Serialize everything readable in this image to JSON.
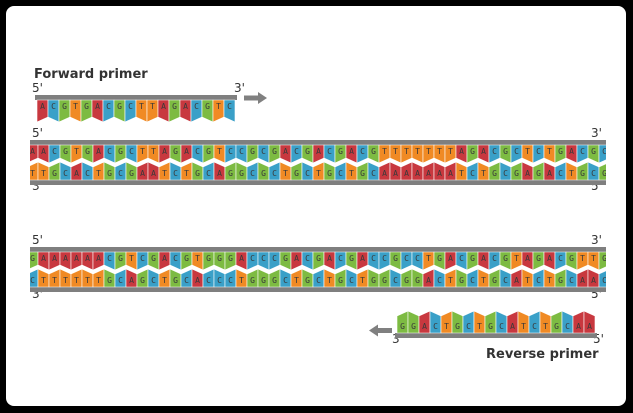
{
  "colors": {
    "A": "#c8383f",
    "C": "#3aa0c8",
    "G": "#7dbb42",
    "T": "#f08a24",
    "backbone": "#7f7f7f",
    "arrow": "#808080"
  },
  "labels": {
    "forward_primer": "Forward primer",
    "reverse_primer": "Reverse primer",
    "five_prime": "5'",
    "three_prime": "3'"
  },
  "forward_primer_seq": "ACGTGACGCTTAGACGTC",
  "strand1_top": "AACGTGACGCTTAGACGTCCGCGACGACGACGTTTTTTTAGACGCTCTGACGCG",
  "strand1_bottom": "TTGCACTGCGAATCTGCAGGCGCTGCTGCTGCAAAAAAATCTGCGAGACTGCGC",
  "strand2_top": "GAAAAAACGTCGACGTGGGACCCGACGACGACCGCCTGACGACGTAGACGTTG",
  "strand2_bottom": "CTTTTTTGCAGCTGCACCCTGGGCTGCTGCTGGCGGACTGCTGCATCTGCAAC",
  "reverse_primer_seq": "GGACTGCTGCATCTGCAA"
}
